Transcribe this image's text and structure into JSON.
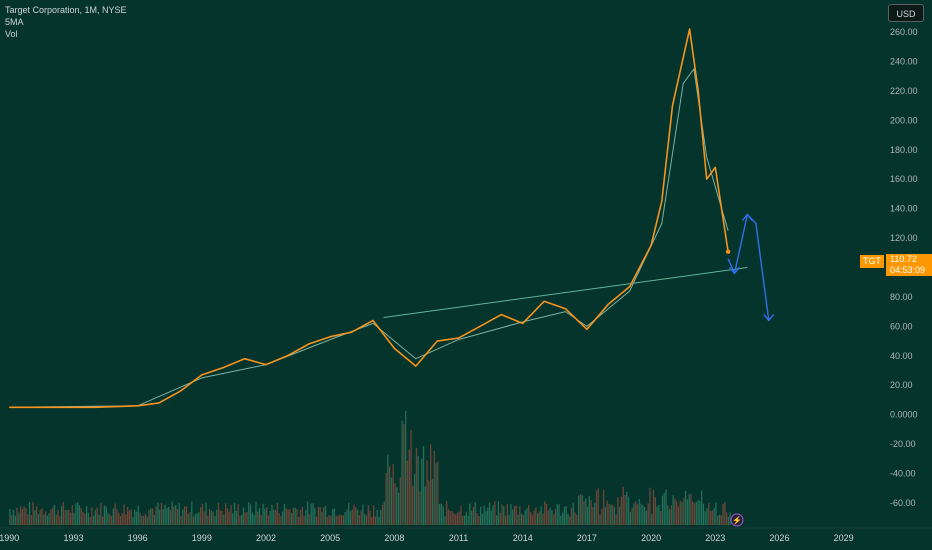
{
  "legend": {
    "title": "Target Corporation, 1M, NYSE",
    "ma": "5MA",
    "vol": "Vol"
  },
  "currency": "USD",
  "last_price": {
    "ticker": "TGT",
    "price": "110.72",
    "countdown": "04:53:09"
  },
  "colors": {
    "background": "#04342b",
    "price": "#f7931e",
    "ma": "#7fb0a0",
    "trendline": "#5fb59a",
    "arrows": "#2f6fe8",
    "vol_up": "#2e7d64",
    "vol_down": "#8a4a3c",
    "accent": "#ff9800"
  },
  "chart_data": {
    "type": "line",
    "y_ticks": [
      "260.00",
      "240.00",
      "220.00",
      "200.00",
      "180.00",
      "160.00",
      "140.00",
      "120.00",
      "100.00",
      "80.00",
      "60.00",
      "40.00",
      "20.00",
      "0.0000",
      "-20.00",
      "-40.00",
      "-60.00"
    ],
    "x_ticks": [
      "1990",
      "1993",
      "1996",
      "1999",
      "2002",
      "2005",
      "2008",
      "2011",
      "2014",
      "2017",
      "2020",
      "2023",
      "2026",
      "2029"
    ],
    "ylim": [
      -75,
      275
    ],
    "xlim": [
      1989.8,
      2030.7
    ],
    "series": [
      {
        "values": [
          [
            1990,
            5
          ],
          [
            1992,
            5
          ],
          [
            1994,
            5
          ],
          [
            1996,
            6
          ],
          [
            1997,
            8
          ],
          [
            1998,
            16
          ],
          [
            1999,
            27
          ],
          [
            2000,
            32
          ],
          [
            2001,
            38
          ],
          [
            2002,
            34
          ],
          [
            2003,
            40
          ],
          [
            2004,
            48
          ],
          [
            2005,
            53
          ],
          [
            2006,
            56
          ],
          [
            2007,
            64
          ],
          [
            2008,
            45
          ],
          [
            2009,
            33
          ],
          [
            2010,
            50
          ],
          [
            2011,
            52
          ],
          [
            2012,
            60
          ],
          [
            2013,
            68
          ],
          [
            2014,
            62
          ],
          [
            2015,
            77
          ],
          [
            2016,
            72
          ],
          [
            2017,
            58
          ],
          [
            2018,
            75
          ],
          [
            2019,
            87
          ],
          [
            2020,
            115
          ],
          [
            2020.5,
            145
          ],
          [
            2021,
            210
          ],
          [
            2021.8,
            262
          ],
          [
            2022.2,
            220
          ],
          [
            2022.6,
            160
          ],
          [
            2023,
            168
          ],
          [
            2023.4,
            130
          ],
          [
            2023.6,
            110.72
          ]
        ]
      },
      {
        "values": [
          [
            1990,
            5
          ],
          [
            1996,
            6
          ],
          [
            1999,
            25
          ],
          [
            2002,
            34
          ],
          [
            2005,
            51
          ],
          [
            2007,
            62
          ],
          [
            2009,
            38
          ],
          [
            2011,
            51
          ],
          [
            2014,
            63
          ],
          [
            2016,
            70
          ],
          [
            2017,
            60
          ],
          [
            2019,
            84
          ],
          [
            2020.5,
            130
          ],
          [
            2021.5,
            225
          ],
          [
            2022,
            235
          ],
          [
            2022.6,
            175
          ],
          [
            2023.2,
            145
          ],
          [
            2023.6,
            125
          ]
        ]
      }
    ],
    "trendline": [
      [
        2007.5,
        66
      ],
      [
        2024.5,
        100
      ]
    ],
    "projection": [
      [
        2023.6,
        106
      ],
      [
        2023.9,
        96
      ],
      [
        2024.5,
        136
      ],
      [
        2024.9,
        130
      ],
      [
        2025.5,
        64
      ]
    ],
    "volume": [
      -75,
      -60
    ],
    "grid": false,
    "legend": "top-left"
  }
}
